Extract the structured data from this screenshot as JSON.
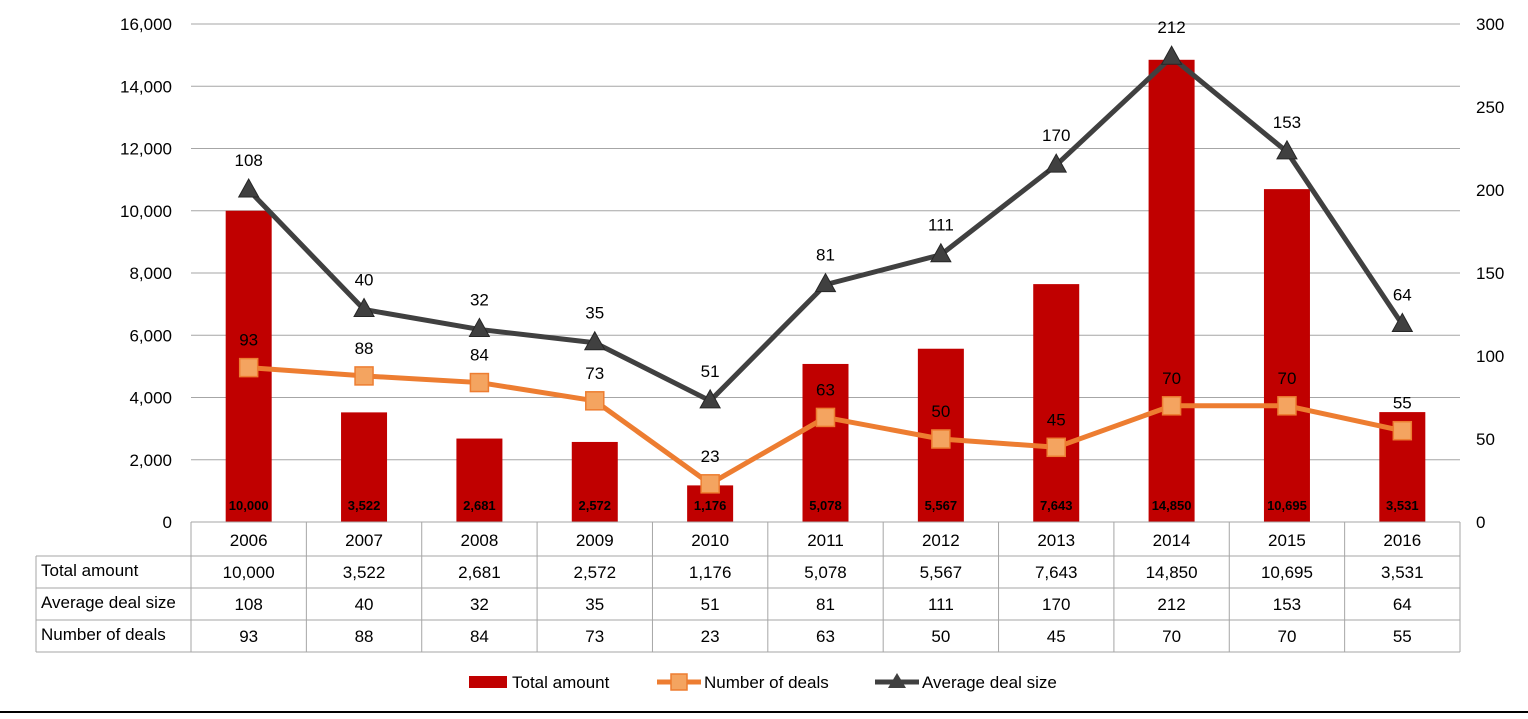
{
  "chart_data": {
    "type": "bar",
    "categories": [
      "2006",
      "2007",
      "2008",
      "2009",
      "2010",
      "2011",
      "2012",
      "2013",
      "2014",
      "2015",
      "2016"
    ],
    "series": [
      {
        "name": "Total amount",
        "type": "bar",
        "axis": "left",
        "values": [
          10000,
          3522,
          2681,
          2572,
          1176,
          5078,
          5567,
          7643,
          14850,
          10695,
          3531
        ],
        "value_labels": [
          "10,000",
          "3,522",
          "2,681",
          "2,572",
          "1,176",
          "5,078",
          "5,567",
          "7,643",
          "14,850",
          "10,695",
          "3,531"
        ],
        "color": "#c00000"
      },
      {
        "name": "Number of deals",
        "type": "line",
        "axis": "right",
        "marker": "square",
        "values": [
          93,
          88,
          84,
          73,
          23,
          63,
          50,
          45,
          70,
          70,
          55
        ],
        "color": "#ed7d31"
      },
      {
        "name": "Average deal size",
        "type": "line",
        "axis": "right",
        "marker": "triangle",
        "values": [
          108,
          40,
          32,
          35,
          51,
          81,
          111,
          170,
          212,
          153,
          64
        ],
        "plotted_values": [
          200,
          128,
          116,
          108,
          73,
          143,
          161,
          215,
          280,
          223,
          119
        ],
        "color": "#404040"
      }
    ],
    "y_left": {
      "range": [
        0,
        16000
      ],
      "ticks": [
        "0",
        "2,000",
        "4,000",
        "6,000",
        "8,000",
        "10,000",
        "12,000",
        "14,000",
        "16,000"
      ]
    },
    "y_right": {
      "range": [
        0,
        300
      ],
      "ticks": [
        "0",
        "50",
        "100",
        "150",
        "200",
        "250",
        "300"
      ]
    },
    "grid": true,
    "legend": {
      "position": "bottom",
      "items": [
        "Total amount",
        "Number of deals",
        "Average deal size"
      ]
    },
    "data_table": {
      "rows": [
        {
          "label": "Total amount",
          "values": [
            "10,000",
            "3,522",
            "2,681",
            "2,572",
            "1,176",
            "5,078",
            "5,567",
            "7,643",
            "14,850",
            "10,695",
            "3,531"
          ]
        },
        {
          "label": "Average deal size",
          "values": [
            "108",
            "40",
            "32",
            "35",
            "51",
            "81",
            "111",
            "170",
            "212",
            "153",
            "64"
          ]
        },
        {
          "label": "Number of deals",
          "values": [
            "93",
            "88",
            "84",
            "73",
            "23",
            "63",
            "50",
            "45",
            "70",
            "70",
            "55"
          ]
        }
      ]
    }
  }
}
